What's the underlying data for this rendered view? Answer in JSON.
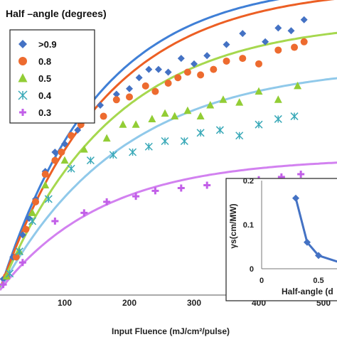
{
  "chart_data": {
    "main": {
      "type": "scatter",
      "xlabel": "Input Fluence (mJ/cm²/pulse)",
      "legend_title": "Half –angle (degrees)",
      "legend_placement": "top-left",
      "xlim": [
        0,
        560
      ],
      "ylim": [
        0,
        1.0
      ],
      "xticks": [
        100,
        200,
        300,
        400,
        500
      ],
      "series": [
        {
          "name": ">0.9",
          "marker": "diamond",
          "color": "#4472c4",
          "fit_color": "#3f7fd6",
          "fit": {
            "a": 1.12,
            "b": 0.0066
          },
          "points": [
            [
              5,
              0.04
            ],
            [
              20,
              0.12
            ],
            [
              35,
              0.2
            ],
            [
              45,
              0.26
            ],
            [
              55,
              0.33
            ],
            [
              70,
              0.43
            ],
            [
              85,
              0.5
            ],
            [
              100,
              0.53
            ],
            [
              110,
              0.56
            ],
            [
              120,
              0.58
            ],
            [
              130,
              0.62
            ],
            [
              155,
              0.67
            ],
            [
              180,
              0.71
            ],
            [
              200,
              0.73
            ],
            [
              215,
              0.77
            ],
            [
              230,
              0.8
            ],
            [
              245,
              0.8
            ],
            [
              260,
              0.79
            ],
            [
              280,
              0.84
            ],
            [
              300,
              0.82
            ],
            [
              320,
              0.85
            ],
            [
              350,
              0.89
            ],
            [
              375,
              0.93
            ],
            [
              410,
              0.9
            ],
            [
              430,
              0.95
            ],
            [
              450,
              0.94
            ],
            [
              470,
              0.98
            ]
          ]
        },
        {
          "name": "0.8",
          "marker": "circle",
          "color": "#ed6b2f",
          "fit_color": "#ec5f24",
          "fit": {
            "a": 1.1,
            "b": 0.0062
          },
          "points": [
            [
              10,
              0.05
            ],
            [
              25,
              0.12
            ],
            [
              40,
              0.22
            ],
            [
              55,
              0.32
            ],
            [
              70,
              0.42
            ],
            [
              85,
              0.47
            ],
            [
              95,
              0.5
            ],
            [
              110,
              0.56
            ],
            [
              125,
              0.6
            ],
            [
              140,
              0.63
            ],
            [
              160,
              0.63
            ],
            [
              180,
              0.69
            ],
            [
              200,
              0.7
            ],
            [
              225,
              0.74
            ],
            [
              240,
              0.72
            ],
            [
              260,
              0.75
            ],
            [
              275,
              0.77
            ],
            [
              290,
              0.79
            ],
            [
              310,
              0.78
            ],
            [
              330,
              0.8
            ],
            [
              350,
              0.83
            ],
            [
              375,
              0.84
            ],
            [
              400,
              0.82
            ],
            [
              430,
              0.87
            ],
            [
              455,
              0.88
            ],
            [
              470,
              0.9
            ]
          ]
        },
        {
          "name": "0.5",
          "marker": "triangle",
          "color": "#92cd35",
          "fit_color": "#a6d84e",
          "fit": {
            "a": 0.98,
            "b": 0.0058
          },
          "points": [
            [
              10,
              0.05
            ],
            [
              30,
              0.14
            ],
            [
              50,
              0.28
            ],
            [
              70,
              0.38
            ],
            [
              100,
              0.47
            ],
            [
              130,
              0.51
            ],
            [
              165,
              0.55
            ],
            [
              190,
              0.6
            ],
            [
              210,
              0.6
            ],
            [
              235,
              0.62
            ],
            [
              255,
              0.64
            ],
            [
              270,
              0.63
            ],
            [
              290,
              0.65
            ],
            [
              310,
              0.63
            ],
            [
              325,
              0.67
            ],
            [
              345,
              0.69
            ],
            [
              370,
              0.68
            ],
            [
              400,
              0.72
            ],
            [
              430,
              0.69
            ],
            [
              460,
              0.74
            ]
          ]
        },
        {
          "name": "0.4",
          "marker": "x",
          "color": "#3aa9b8",
          "fit_color": "#90c9ea",
          "fit": {
            "a": 0.82,
            "b": 0.0053
          },
          "points": [
            [
              15,
              0.06
            ],
            [
              30,
              0.14
            ],
            [
              50,
              0.25
            ],
            [
              75,
              0.33
            ],
            [
              110,
              0.44
            ],
            [
              140,
              0.47
            ],
            [
              175,
              0.49
            ],
            [
              205,
              0.5
            ],
            [
              230,
              0.52
            ],
            [
              255,
              0.54
            ],
            [
              285,
              0.54
            ],
            [
              310,
              0.57
            ],
            [
              340,
              0.58
            ],
            [
              370,
              0.56
            ],
            [
              400,
              0.6
            ],
            [
              430,
              0.62
            ],
            [
              455,
              0.63
            ]
          ]
        },
        {
          "name": "0.3",
          "marker": "plus",
          "color": "#c25fe8",
          "fit_color": "#d281f0",
          "fit": {
            "a": 0.48,
            "b": 0.0063
          },
          "points": [
            [
              5,
              0.02
            ],
            [
              35,
              0.1
            ],
            [
              85,
              0.25
            ],
            [
              130,
              0.28
            ],
            [
              165,
              0.32
            ],
            [
              210,
              0.34
            ],
            [
              240,
              0.36
            ],
            [
              280,
              0.37
            ],
            [
              320,
              0.38
            ],
            [
              360,
              0.39
            ],
            [
              400,
              0.4
            ],
            [
              435,
              0.41
            ],
            [
              465,
              0.42
            ]
          ]
        }
      ]
    },
    "inset": {
      "type": "line",
      "xlabel": "Half-angle  (d",
      "ylabel": "γs(cm/MW)",
      "xlim": [
        0,
        0.9
      ],
      "ylim": [
        0,
        0.2
      ],
      "xticks": [
        0,
        0.5
      ],
      "yticks": [
        0,
        0.1,
        0.2
      ],
      "color": "#4472c4",
      "points": [
        [
          0.3,
          0.16
        ],
        [
          0.4,
          0.06
        ],
        [
          0.5,
          0.03
        ],
        [
          0.8,
          0.005
        ]
      ]
    }
  }
}
